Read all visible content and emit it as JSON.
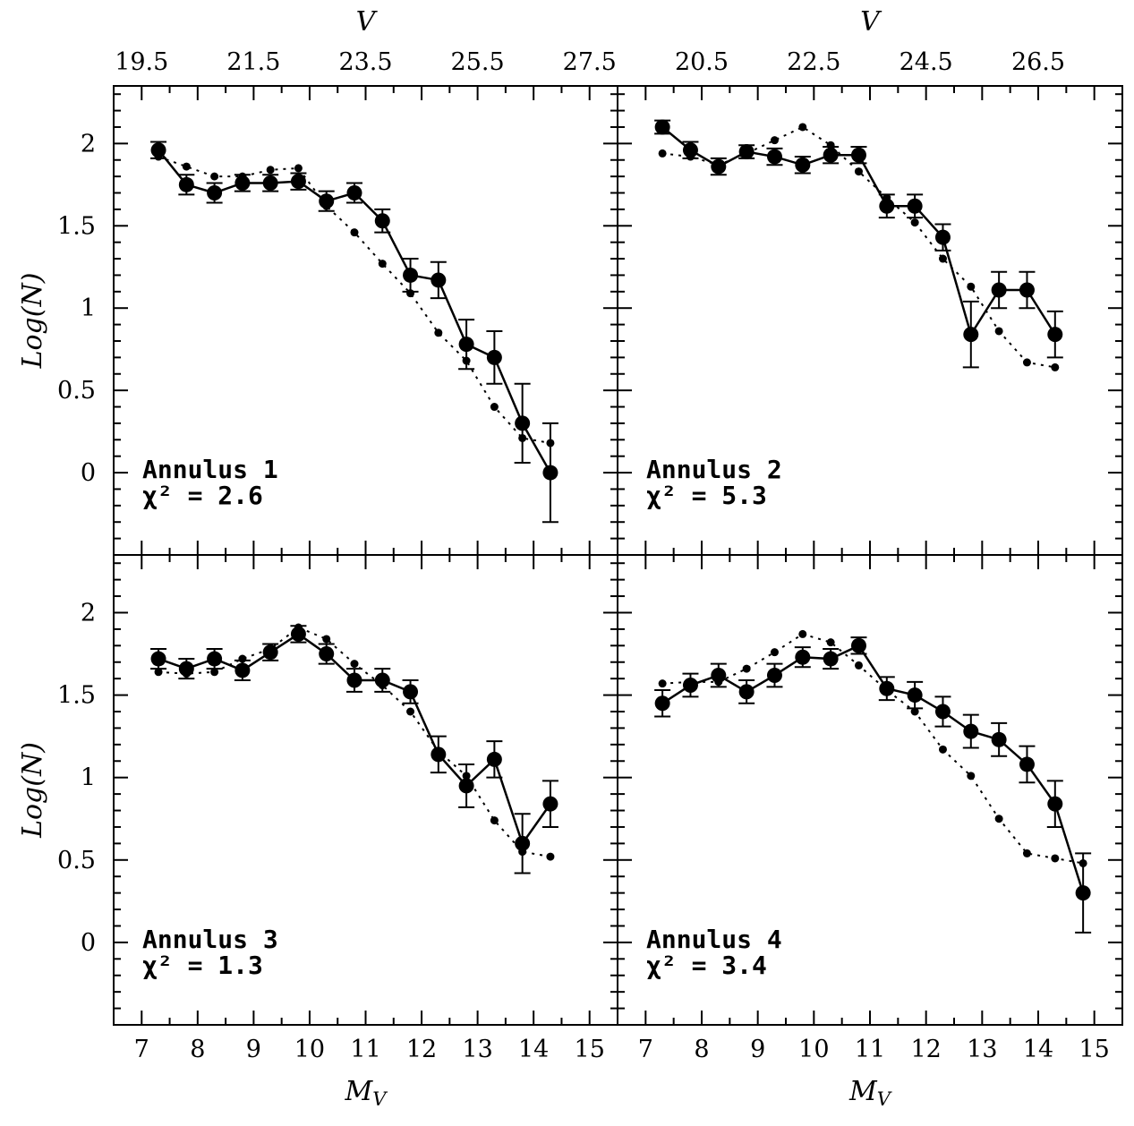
{
  "chart_data": {
    "type": "scatter",
    "xlabel": "M_V",
    "xlabel_main": "M",
    "xlabel_sub": "V",
    "x2label": "V",
    "ylabel": "Log(N)",
    "xlim": [
      6.5,
      15.5
    ],
    "ylim": [
      -0.5,
      2.35
    ],
    "x_ticks": [
      7,
      8,
      9,
      10,
      11,
      12,
      13,
      14,
      15
    ],
    "y_ticks": [
      0,
      0.5,
      1,
      1.5,
      2
    ],
    "y_tick_labels": [
      "0",
      "0.5",
      "1",
      "1.5",
      "2"
    ],
    "panels": [
      {
        "annulus_label": "Annulus 1",
        "chi_label": "χ² = 2.6",
        "top_ticks": [
          "19.5",
          "21.5",
          "23.5",
          "25.5",
          "27.5"
        ],
        "observed": [
          {
            "x": 7.3,
            "y": 1.96,
            "err": 0.05
          },
          {
            "x": 7.8,
            "y": 1.75,
            "err": 0.06
          },
          {
            "x": 8.3,
            "y": 1.7,
            "err": 0.06
          },
          {
            "x": 8.8,
            "y": 1.76,
            "err": 0.05
          },
          {
            "x": 9.3,
            "y": 1.76,
            "err": 0.05
          },
          {
            "x": 9.8,
            "y": 1.77,
            "err": 0.05
          },
          {
            "x": 10.3,
            "y": 1.65,
            "err": 0.06
          },
          {
            "x": 10.8,
            "y": 1.7,
            "err": 0.06
          },
          {
            "x": 11.3,
            "y": 1.53,
            "err": 0.07
          },
          {
            "x": 11.8,
            "y": 1.2,
            "err": 0.1
          },
          {
            "x": 12.3,
            "y": 1.17,
            "err": 0.11
          },
          {
            "x": 12.8,
            "y": 0.78,
            "err": 0.15
          },
          {
            "x": 13.3,
            "y": 0.7,
            "err": 0.16
          },
          {
            "x": 13.8,
            "y": 0.3,
            "err": 0.24
          },
          {
            "x": 14.3,
            "y": 0.0,
            "err": 0.3
          }
        ],
        "model": [
          {
            "x": 7.3,
            "y": 1.92
          },
          {
            "x": 7.8,
            "y": 1.86
          },
          {
            "x": 8.3,
            "y": 1.8
          },
          {
            "x": 8.8,
            "y": 1.8
          },
          {
            "x": 9.3,
            "y": 1.84
          },
          {
            "x": 9.8,
            "y": 1.85
          },
          {
            "x": 10.3,
            "y": 1.62
          },
          {
            "x": 10.8,
            "y": 1.46
          },
          {
            "x": 11.3,
            "y": 1.27
          },
          {
            "x": 11.8,
            "y": 1.09
          },
          {
            "x": 12.3,
            "y": 0.85
          },
          {
            "x": 12.8,
            "y": 0.68
          },
          {
            "x": 13.3,
            "y": 0.4
          },
          {
            "x": 13.8,
            "y": 0.21
          },
          {
            "x": 14.3,
            "y": 0.18
          }
        ]
      },
      {
        "annulus_label": "Annulus 2",
        "chi_label": "χ² = 5.3",
        "top_ticks": [
          "20.5",
          "22.5",
          "24.5",
          "26.5"
        ],
        "observed": [
          {
            "x": 7.3,
            "y": 2.1,
            "err": 0.04
          },
          {
            "x": 7.8,
            "y": 1.96,
            "err": 0.05
          },
          {
            "x": 8.3,
            "y": 1.86,
            "err": 0.05
          },
          {
            "x": 8.8,
            "y": 1.95,
            "err": 0.04
          },
          {
            "x": 9.3,
            "y": 1.92,
            "err": 0.05
          },
          {
            "x": 9.8,
            "y": 1.87,
            "err": 0.05
          },
          {
            "x": 10.3,
            "y": 1.93,
            "err": 0.05
          },
          {
            "x": 10.8,
            "y": 1.93,
            "err": 0.05
          },
          {
            "x": 11.3,
            "y": 1.62,
            "err": 0.07
          },
          {
            "x": 11.8,
            "y": 1.62,
            "err": 0.07
          },
          {
            "x": 12.3,
            "y": 1.43,
            "err": 0.08
          },
          {
            "x": 12.8,
            "y": 0.84,
            "err": 0.2
          },
          {
            "x": 13.3,
            "y": 1.11,
            "err": 0.11
          },
          {
            "x": 13.8,
            "y": 1.11,
            "err": 0.11
          },
          {
            "x": 14.3,
            "y": 0.84,
            "err": 0.14
          }
        ],
        "model": [
          {
            "x": 7.3,
            "y": 1.94
          },
          {
            "x": 7.8,
            "y": 1.92
          },
          {
            "x": 8.3,
            "y": 1.87
          },
          {
            "x": 8.8,
            "y": 1.94
          },
          {
            "x": 9.3,
            "y": 2.02
          },
          {
            "x": 9.8,
            "y": 2.1
          },
          {
            "x": 10.3,
            "y": 1.99
          },
          {
            "x": 10.8,
            "y": 1.83
          },
          {
            "x": 11.3,
            "y": 1.67
          },
          {
            "x": 11.8,
            "y": 1.52
          },
          {
            "x": 12.3,
            "y": 1.3
          },
          {
            "x": 12.8,
            "y": 1.13
          },
          {
            "x": 13.3,
            "y": 0.86
          },
          {
            "x": 13.8,
            "y": 0.67
          },
          {
            "x": 14.3,
            "y": 0.64
          }
        ]
      },
      {
        "annulus_label": "Annulus 3",
        "chi_label": "χ² = 1.3",
        "top_ticks": [],
        "observed": [
          {
            "x": 7.3,
            "y": 1.72,
            "err": 0.06
          },
          {
            "x": 7.8,
            "y": 1.66,
            "err": 0.06
          },
          {
            "x": 8.3,
            "y": 1.72,
            "err": 0.06
          },
          {
            "x": 8.8,
            "y": 1.65,
            "err": 0.06
          },
          {
            "x": 9.3,
            "y": 1.76,
            "err": 0.05
          },
          {
            "x": 9.8,
            "y": 1.87,
            "err": 0.05
          },
          {
            "x": 10.3,
            "y": 1.75,
            "err": 0.06
          },
          {
            "x": 10.8,
            "y": 1.59,
            "err": 0.07
          },
          {
            "x": 11.3,
            "y": 1.59,
            "err": 0.07
          },
          {
            "x": 11.8,
            "y": 1.52,
            "err": 0.07
          },
          {
            "x": 12.3,
            "y": 1.14,
            "err": 0.11
          },
          {
            "x": 12.8,
            "y": 0.95,
            "err": 0.13
          },
          {
            "x": 13.3,
            "y": 1.11,
            "err": 0.11
          },
          {
            "x": 13.8,
            "y": 0.6,
            "err": 0.18
          },
          {
            "x": 14.3,
            "y": 0.84,
            "err": 0.14
          }
        ],
        "model": [
          {
            "x": 7.3,
            "y": 1.64
          },
          {
            "x": 7.8,
            "y": 1.63
          },
          {
            "x": 8.3,
            "y": 1.64
          },
          {
            "x": 8.8,
            "y": 1.72
          },
          {
            "x": 9.3,
            "y": 1.78
          },
          {
            "x": 9.8,
            "y": 1.91
          },
          {
            "x": 10.3,
            "y": 1.84
          },
          {
            "x": 10.8,
            "y": 1.69
          },
          {
            "x": 11.3,
            "y": 1.56
          },
          {
            "x": 11.8,
            "y": 1.4
          },
          {
            "x": 12.3,
            "y": 1.16
          },
          {
            "x": 12.8,
            "y": 1.01
          },
          {
            "x": 13.3,
            "y": 0.74
          },
          {
            "x": 13.8,
            "y": 0.55
          },
          {
            "x": 14.3,
            "y": 0.52
          }
        ]
      },
      {
        "annulus_label": "Annulus 4",
        "chi_label": "χ² = 3.4",
        "top_ticks": [],
        "observed": [
          {
            "x": 7.3,
            "y": 1.45,
            "err": 0.08
          },
          {
            "x": 7.8,
            "y": 1.56,
            "err": 0.07
          },
          {
            "x": 8.3,
            "y": 1.62,
            "err": 0.07
          },
          {
            "x": 8.8,
            "y": 1.52,
            "err": 0.07
          },
          {
            "x": 9.3,
            "y": 1.62,
            "err": 0.07
          },
          {
            "x": 9.8,
            "y": 1.73,
            "err": 0.06
          },
          {
            "x": 10.3,
            "y": 1.72,
            "err": 0.06
          },
          {
            "x": 10.8,
            "y": 1.8,
            "err": 0.05
          },
          {
            "x": 11.3,
            "y": 1.54,
            "err": 0.07
          },
          {
            "x": 11.8,
            "y": 1.5,
            "err": 0.08
          },
          {
            "x": 12.3,
            "y": 1.4,
            "err": 0.09
          },
          {
            "x": 12.8,
            "y": 1.28,
            "err": 0.1
          },
          {
            "x": 13.3,
            "y": 1.23,
            "err": 0.1
          },
          {
            "x": 13.8,
            "y": 1.08,
            "err": 0.11
          },
          {
            "x": 14.3,
            "y": 0.84,
            "err": 0.14
          },
          {
            "x": 14.8,
            "y": 0.3,
            "err": 0.24
          }
        ],
        "model": [
          {
            "x": 7.3,
            "y": 1.57
          },
          {
            "x": 7.8,
            "y": 1.58
          },
          {
            "x": 8.3,
            "y": 1.58
          },
          {
            "x": 8.8,
            "y": 1.66
          },
          {
            "x": 9.3,
            "y": 1.76
          },
          {
            "x": 9.8,
            "y": 1.87
          },
          {
            "x": 10.3,
            "y": 1.82
          },
          {
            "x": 10.8,
            "y": 1.68
          },
          {
            "x": 11.3,
            "y": 1.53
          },
          {
            "x": 11.8,
            "y": 1.4
          },
          {
            "x": 12.3,
            "y": 1.17
          },
          {
            "x": 12.8,
            "y": 1.01
          },
          {
            "x": 13.3,
            "y": 0.75
          },
          {
            "x": 13.8,
            "y": 0.54
          },
          {
            "x": 14.3,
            "y": 0.51
          },
          {
            "x": 14.8,
            "y": 0.48
          }
        ]
      }
    ]
  }
}
